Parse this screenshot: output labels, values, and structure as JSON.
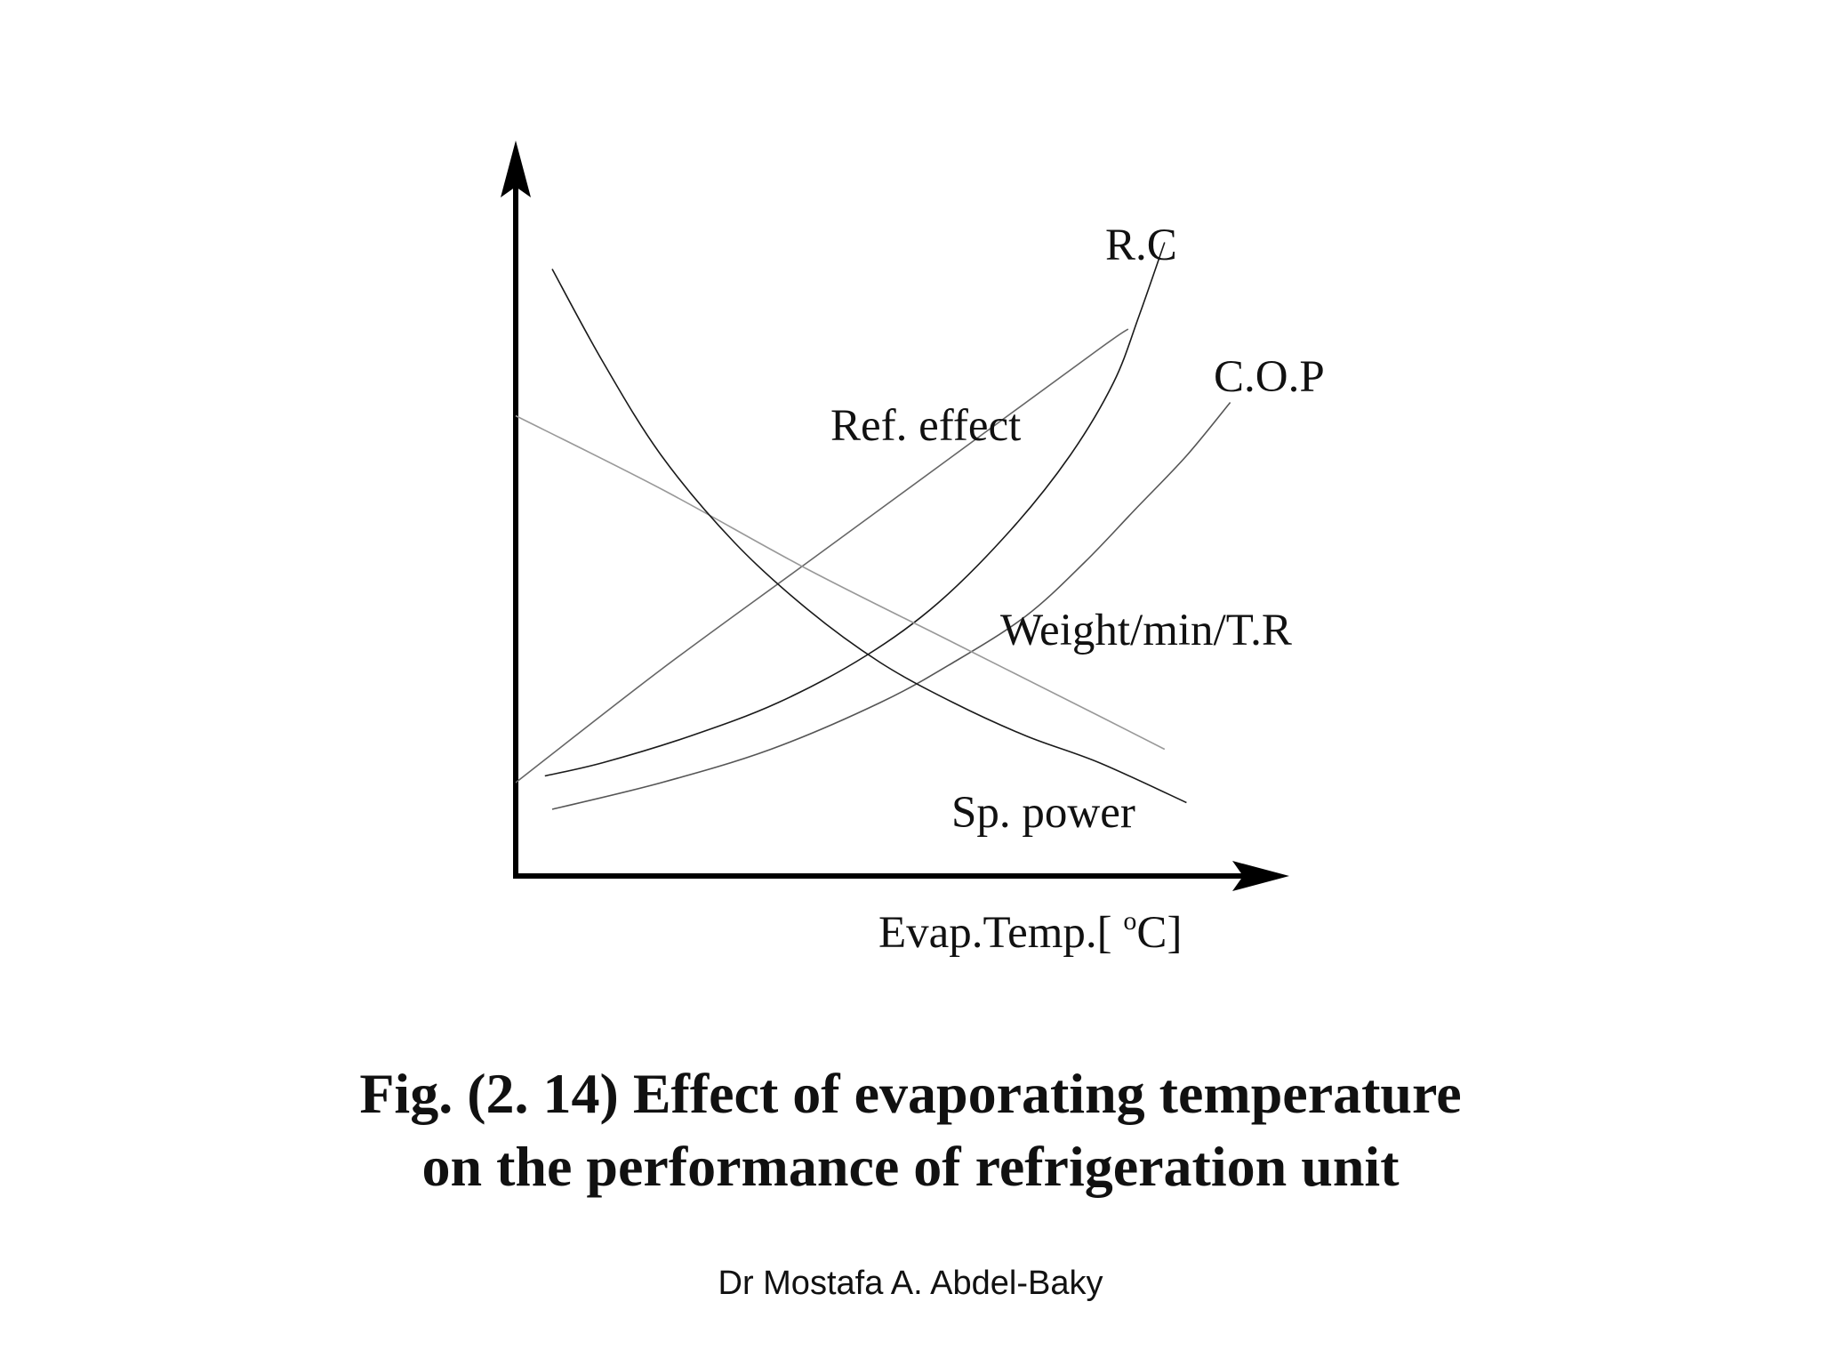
{
  "chart_data": {
    "type": "line",
    "xlabel_main": "Evap.Temp.[ ",
    "xlabel_sup": "o",
    "xlabel_end": "C]",
    "x": [
      0,
      0.1,
      0.2,
      0.3,
      0.4,
      0.5,
      0.6,
      0.7,
      0.8,
      0.9,
      1.0
    ],
    "xlim": [
      0,
      1
    ],
    "ylim": [
      0,
      1
    ],
    "series": [
      {
        "name": "R.C",
        "color": "#1a1a1a",
        "x": [
          0.04,
          0.12,
          0.24,
          0.36,
          0.48,
          0.58,
          0.68,
          0.76,
          0.82,
          0.855,
          0.89
        ],
        "y": [
          0.15,
          0.17,
          0.21,
          0.26,
          0.33,
          0.41,
          0.52,
          0.63,
          0.74,
          0.84,
          0.95
        ]
      },
      {
        "name": "C.O.P",
        "color": "#555555",
        "x": [
          0.05,
          0.2,
          0.35,
          0.5,
          0.6,
          0.7,
          0.78,
          0.85,
          0.92,
          0.98
        ],
        "y": [
          0.1,
          0.14,
          0.19,
          0.26,
          0.32,
          0.39,
          0.47,
          0.55,
          0.63,
          0.71
        ]
      },
      {
        "name": "Ref. effect",
        "color": "#666666",
        "x": [
          0.0,
          0.2,
          0.4,
          0.6,
          0.8,
          0.84
        ],
        "y": [
          0.14,
          0.31,
          0.47,
          0.63,
          0.79,
          0.82
        ]
      },
      {
        "name": "Weight/min/T.R",
        "color": "#999999",
        "x": [
          0.0,
          0.2,
          0.4,
          0.6,
          0.8,
          0.89
        ],
        "y": [
          0.69,
          0.58,
          0.46,
          0.35,
          0.24,
          0.19
        ]
      },
      {
        "name": "Sp. power",
        "color": "#1a1a1a",
        "x": [
          0.05,
          0.12,
          0.2,
          0.3,
          0.4,
          0.5,
          0.6,
          0.7,
          0.8,
          0.92
        ],
        "y": [
          0.91,
          0.77,
          0.63,
          0.5,
          0.4,
          0.32,
          0.26,
          0.21,
          0.17,
          0.11
        ]
      }
    ]
  },
  "caption": {
    "line1": "Fig. (2. 14) Effect of evaporating temperature",
    "line2": "on the performance of refrigeration unit"
  },
  "author": "Dr Mostafa A. Abdel-Baky"
}
